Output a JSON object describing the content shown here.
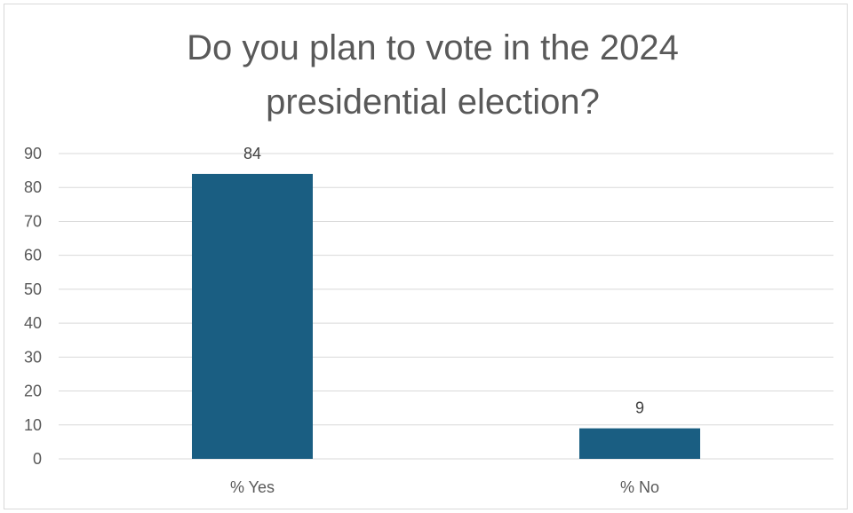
{
  "chart_data": {
    "type": "bar",
    "title_lines": [
      "Do you plan to vote in the 2024",
      "presidential election?"
    ],
    "categories": [
      "% Yes",
      "% No"
    ],
    "values": [
      84,
      9
    ],
    "data_labels": [
      "84",
      "9"
    ],
    "ylim": [
      0,
      90
    ],
    "yticks": [
      0,
      10,
      20,
      30,
      40,
      50,
      60,
      70,
      80,
      90
    ],
    "grid": true,
    "legend": "none",
    "bar_color": "#1a5e82",
    "grid_color": "#d9d9d9",
    "xlabel": "",
    "ylabel": ""
  }
}
